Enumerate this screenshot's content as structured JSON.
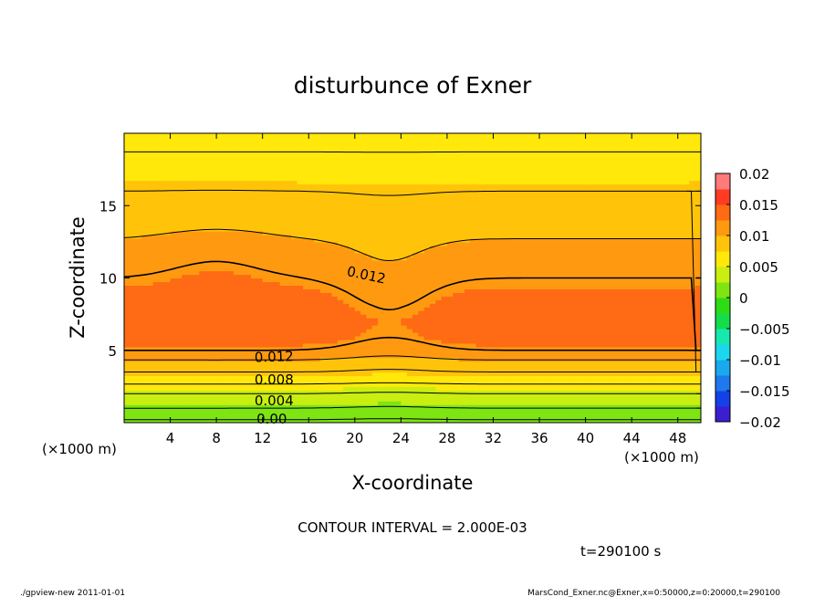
{
  "chart_data": {
    "type": "heatmap",
    "title": "disturbunce of Exner",
    "xlabel": "X-coordinate",
    "ylabel": "Z-coordinate",
    "x_unit": "(×1000 m)",
    "y_unit": "(×1000 m)",
    "xlim": [
      0,
      50
    ],
    "ylim": [
      0,
      20
    ],
    "x_ticks": [
      4,
      8,
      12,
      16,
      20,
      24,
      28,
      32,
      36,
      40,
      44,
      48
    ],
    "y_ticks": [
      5,
      10,
      15
    ],
    "colorbar": {
      "range": [
        -0.02,
        0.02
      ],
      "levels": [
        -0.02,
        -0.0175,
        -0.015,
        -0.0125,
        -0.01,
        -0.0075,
        -0.005,
        -0.0025,
        0,
        0.0025,
        0.005,
        0.0075,
        0.01,
        0.0125,
        0.015,
        0.0175,
        0.02
      ],
      "colors": [
        "#7b2fbf",
        "#3a1fd0",
        "#1440e6",
        "#1e78ee",
        "#1aa8ee",
        "#1cd6ee",
        "#17e8b0",
        "#14dc4a",
        "#2edc16",
        "#7ee412",
        "#c8ee12",
        "#ffe80a",
        "#ffc40a",
        "#ff9a10",
        "#ff6a14",
        "#ff3c22",
        "#ff7a7a",
        "#ffb0b0"
      ],
      "tick_labels": [
        "0.02",
        "0.015",
        "0.01",
        "0.005",
        "0",
        "−0.005",
        "−0.01",
        "−0.015",
        "−0.02"
      ]
    },
    "contour_interval": "CONTOUR INTERVAL = 2.000E-03",
    "contour_labels": [
      "0.012",
      "0.012",
      "0.008",
      "0.004",
      "0.00"
    ],
    "profile_z": [
      0,
      0.5,
      1,
      1.5,
      2,
      2.5,
      3,
      3.5,
      4,
      4.5,
      5,
      6,
      7,
      8,
      9,
      10,
      11,
      12,
      13,
      14,
      15,
      16,
      17,
      18,
      19,
      20
    ],
    "profile_value": [
      0.0,
      0.001,
      0.002,
      0.003,
      0.004,
      0.0055,
      0.007,
      0.008,
      0.009,
      0.0105,
      0.012,
      0.0135,
      0.014,
      0.0135,
      0.0128,
      0.012,
      0.0112,
      0.0105,
      0.0098,
      0.009,
      0.0085,
      0.008,
      0.0072,
      0.0065,
      0.0058,
      0.005
    ]
  },
  "annotations": {
    "time": "t=290100 s",
    "footer_left": "./gpview-new   2011-01-01",
    "footer_right": "MarsCond_Exner.nc@Exner,x=0:50000,z=0:20000,t=290100"
  }
}
